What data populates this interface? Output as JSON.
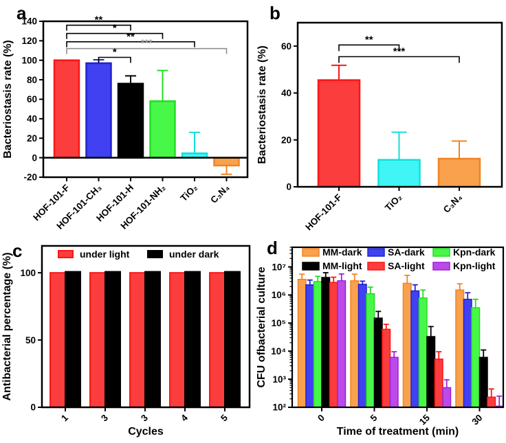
{
  "page": {
    "background": "#ffffff"
  },
  "chart_data": [
    {
      "id": "a",
      "panel_label": "a",
      "type": "bar",
      "scale": "linear",
      "title": "",
      "ylabel": "Bacteriostasis rate (%)",
      "xlabel": "",
      "ylim": [
        -20,
        140
      ],
      "ytick_values": [
        -20,
        0,
        20,
        40,
        60,
        80,
        100,
        120,
        140
      ],
      "ytick_labels": [
        "-20",
        "0",
        "20",
        "40",
        "60",
        "80",
        "100",
        "120",
        "140"
      ],
      "categories": [
        "HOF-101-F",
        "HOF-101-CH₃",
        "HOF-101-H",
        "HOF-101-NH₂",
        "TiO₂",
        "C₃N₄"
      ],
      "values": [
        100,
        97,
        76,
        58,
        4.5,
        -8
      ],
      "err_up": [
        0,
        3.5,
        8,
        31.5,
        21.5,
        0
      ],
      "err_down": [
        0,
        0,
        0,
        0,
        0,
        9
      ],
      "bar_fills": [
        "#fb3d3d",
        "#4141f2",
        "#000000",
        "#48f848",
        "#40f5f5",
        "#f9a14c"
      ],
      "bar_strokes": [
        "#ff1414",
        "#2222cc",
        "#000000",
        "#22dd22",
        "#12dede",
        "#f08422"
      ],
      "significance": [
        {
          "from": 0,
          "to": 2,
          "label": "**",
          "y": 136,
          "color": "#000000"
        },
        {
          "from": 0,
          "to": 3,
          "label": "*",
          "y": 127.5,
          "color": "#000000"
        },
        {
          "from": 0,
          "to": 4,
          "label": "**",
          "y": 119,
          "color": "#000000"
        },
        {
          "from": 0,
          "to": 5,
          "label": "***",
          "y": 112,
          "color": "#8f8f8f"
        },
        {
          "from": 1,
          "to": 2,
          "label": "*",
          "y": 103,
          "color": "#000000"
        }
      ]
    },
    {
      "id": "b",
      "panel_label": "b",
      "type": "bar",
      "scale": "linear",
      "title": "",
      "ylabel": "Bacteriostasis rate (%)",
      "xlabel": "",
      "ylim": [
        0,
        70
      ],
      "ytick_values": [
        0,
        20,
        40,
        60
      ],
      "ytick_labels": [
        "0",
        "20",
        "40",
        "60"
      ],
      "categories": [
        "HOF-101-F",
        "TiO₂",
        "C₃N₄"
      ],
      "values": [
        45.5,
        11.5,
        12
      ],
      "err_up": [
        6.3,
        11.8,
        7.5
      ],
      "err_down": [
        0,
        0,
        0
      ],
      "bar_fills": [
        "#fb3d3d",
        "#40f5f5",
        "#f9a14c"
      ],
      "bar_strokes": [
        "#ff1414",
        "#12dede",
        "#f08422"
      ],
      "significance": [
        {
          "from": 0,
          "to": 1,
          "label": "**",
          "y": 60.5,
          "color": "#000000"
        },
        {
          "from": 0,
          "to": 2,
          "label": "***",
          "y": 55.5,
          "color": "#000000"
        }
      ]
    },
    {
      "id": "c",
      "panel_label": "c",
      "type": "grouped_bar",
      "scale": "linear",
      "title": "",
      "ylabel": "Antibacterial percentage (%)",
      "xlabel": "Cycles",
      "ylim": [
        0,
        120
      ],
      "ytick_values": [
        0,
        50,
        100
      ],
      "ytick_labels": [
        "0",
        "50",
        "100"
      ],
      "categories": [
        "1",
        "3",
        "3",
        "4",
        "5"
      ],
      "series": [
        {
          "name": "under light",
          "fill": "#fb3d3d",
          "stroke": "#ff1414",
          "values": [
            100,
            100,
            100,
            100,
            100
          ]
        },
        {
          "name": "under dark",
          "fill": "#000000",
          "stroke": "#000000",
          "values": [
            100.8,
            100.8,
            100.8,
            100.8,
            100.8
          ]
        }
      ],
      "legend_position": "top-inside-horizontal"
    },
    {
      "id": "d",
      "panel_label": "d",
      "type": "grouped_bar",
      "scale": "log",
      "title": "",
      "ylabel": "CFU ofbacterial culture",
      "xlabel": "Time of treatment (min)",
      "ylim": [
        100,
        50000000
      ],
      "ytick_values": [
        100,
        1000,
        10000,
        100000,
        1000000,
        10000000
      ],
      "ytick_labels": [
        "10²",
        "10³",
        "10⁴",
        "10⁵",
        "10⁶",
        "10⁷"
      ],
      "categories": [
        "0",
        "5",
        "15",
        "30"
      ],
      "series": [
        {
          "name": "MM-dark",
          "fill": "#f9a14c",
          "stroke": "#f08422",
          "values": [
            3600000.0,
            3200000.0,
            2600000.0,
            1500000.0
          ],
          "err_top": [
            5500000.0,
            5500000.0,
            5000000.0,
            2500000.0
          ]
        },
        {
          "name": "SA-dark",
          "fill": "#4141f2",
          "stroke": "#2222cc",
          "values": [
            2300000.0,
            2400000.0,
            1400000.0,
            700000.0
          ],
          "err_top": [
            3400000.0,
            3100000.0,
            2300000.0,
            1200000.0
          ]
        },
        {
          "name": "Kpn-dark",
          "fill": "#48f848",
          "stroke": "#22dd22",
          "values": [
            3000000.0,
            1100000.0,
            780000.0,
            350000.0
          ],
          "err_top": [
            4600000.0,
            1900000.0,
            1500000.0,
            700000.0
          ]
        },
        {
          "name": "MM-light",
          "fill": "#000000",
          "stroke": "#000000",
          "values": [
            4200000.0,
            150000.0,
            33000.0,
            6000.0
          ],
          "err_top": [
            6200000.0,
            260000.0,
            75000.0,
            11000.0
          ]
        },
        {
          "name": "SA-light",
          "fill": "#fb3d3d",
          "stroke": "#ff1414",
          "values": [
            2800000.0,
            60000.0,
            5200.0,
            230
          ],
          "err_top": [
            4300000.0,
            90000.0,
            9500.0,
            450
          ]
        },
        {
          "name": "Kpn-light",
          "fill": "#bb4ae8",
          "stroke": "#a01fd6",
          "values": [
            3200000.0,
            6000.0,
            500,
            110
          ],
          "err_top": [
            5600000.0,
            9500.0,
            950,
            250
          ]
        }
      ],
      "legend_position": "top-inside-grid"
    }
  ]
}
